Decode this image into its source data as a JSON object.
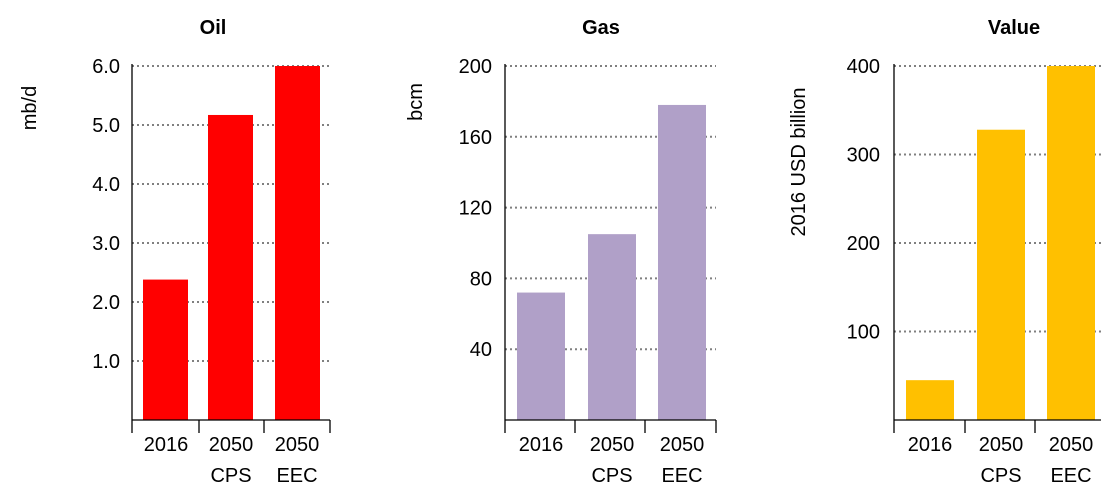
{
  "chart_data": [
    {
      "type": "bar",
      "title": "Oil",
      "ylabel": "mb/d",
      "xlabel": "",
      "categories": [
        [
          "2016"
        ],
        [
          "2050",
          "CPS"
        ],
        [
          "2050",
          "EEC"
        ]
      ],
      "values": [
        2.38,
        5.17,
        6.0
      ],
      "ylim": [
        0,
        6.0
      ],
      "yticks": [
        1.0,
        2.0,
        3.0,
        4.0,
        5.0,
        6.0
      ],
      "ytick_labels": [
        "1.0",
        "2.0",
        "3.0",
        "4.0",
        "5.0",
        "6.0"
      ],
      "color": "#ff0000",
      "grid": "dotted horizontal"
    },
    {
      "type": "bar",
      "title": "Gas",
      "ylabel": "bcm",
      "xlabel": "",
      "categories": [
        [
          "2016"
        ],
        [
          "2050",
          "CPS"
        ],
        [
          "2050",
          "EEC"
        ]
      ],
      "values": [
        72,
        105,
        178
      ],
      "ylim": [
        0,
        200
      ],
      "yticks": [
        40,
        80,
        120,
        160,
        200
      ],
      "ytick_labels": [
        "40",
        "80",
        "120",
        "160",
        "200"
      ],
      "color": "#b0a0c8",
      "grid": "dotted horizontal"
    },
    {
      "type": "bar",
      "title": "Value",
      "ylabel": "2016 USD billion",
      "xlabel": "",
      "categories": [
        [
          "2016"
        ],
        [
          "2050",
          "CPS"
        ],
        [
          "2050",
          "EEC"
        ]
      ],
      "values": [
        45,
        328,
        400
      ],
      "ylim": [
        0,
        400
      ],
      "yticks": [
        100,
        200,
        300,
        400
      ],
      "ytick_labels": [
        "100",
        "200",
        "300",
        "400"
      ],
      "color": "#ffc000",
      "grid": "dotted horizontal"
    }
  ]
}
